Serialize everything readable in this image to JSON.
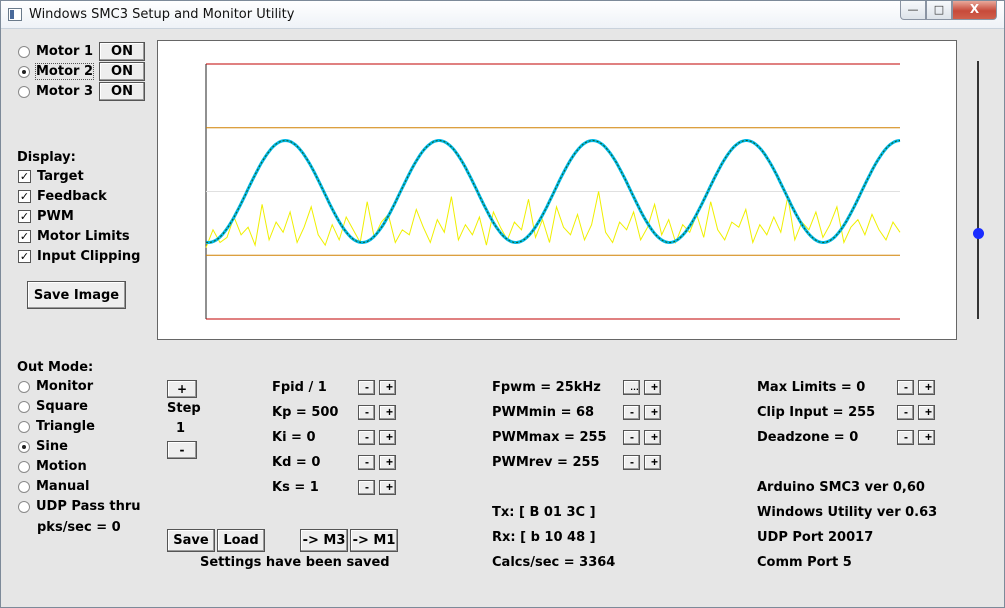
{
  "window": {
    "title": "Windows SMC3 Setup and Monitor Utility",
    "controls": {
      "minimize": "—",
      "maximize": "□",
      "close": "X"
    }
  },
  "motors": [
    {
      "label": "Motor 1",
      "selected": false,
      "button": "ON"
    },
    {
      "label": "Motor 2",
      "selected": true,
      "button": "ON"
    },
    {
      "label": "Motor 3",
      "selected": false,
      "button": "ON"
    }
  ],
  "display": {
    "heading": "Display:",
    "options": [
      {
        "label": "Target",
        "checked": true
      },
      {
        "label": "Feedback",
        "checked": true
      },
      {
        "label": "PWM",
        "checked": true
      },
      {
        "label": "Motor Limits",
        "checked": true
      },
      {
        "label": "Input Clipping",
        "checked": true
      }
    ],
    "check_glyph": "✓",
    "save_image": "Save Image"
  },
  "out_mode": {
    "heading": "Out Mode:",
    "options": [
      {
        "label": "Monitor",
        "selected": false
      },
      {
        "label": "Square",
        "selected": false
      },
      {
        "label": "Triangle",
        "selected": false
      },
      {
        "label": "Sine",
        "selected": true
      },
      {
        "label": "Motion",
        "selected": false
      },
      {
        "label": "Manual",
        "selected": false
      },
      {
        "label": "UDP Pass thru",
        "selected": false
      }
    ],
    "pks_sec": "pks/sec = 0"
  },
  "step": {
    "plus": "+",
    "label": "Step",
    "value": "1",
    "minus": "-"
  },
  "pid_params": [
    {
      "label": "Fpid / 1"
    },
    {
      "label": "Kp = 500"
    },
    {
      "label": "Ki = 0"
    },
    {
      "label": "Kd = 0"
    },
    {
      "label": "Ks = 1"
    }
  ],
  "pwm_params": [
    {
      "label": "Fpwm = 25kHz",
      "minus_icon": "…"
    },
    {
      "label": "PWMmin = 68"
    },
    {
      "label": "PWMmax = 255"
    },
    {
      "label": "PWMrev = 255"
    }
  ],
  "limit_params": [
    {
      "label": "Max Limits = 0"
    },
    {
      "label": "Clip Input = 255"
    },
    {
      "label": "Deadzone = 0"
    }
  ],
  "spin": {
    "minus": "-",
    "plus": "+"
  },
  "comms": {
    "tx": "Tx: [ B 01 3C ]",
    "rx": "Rx: [ b 10 48 ]",
    "calcs": "Calcs/sec = 3364"
  },
  "info": {
    "arduino": "Arduino SMC3 ver 0,60",
    "utility": "Windows Utility ver 0.63",
    "udp": "UDP Port 20017",
    "comm": "Comm Port 5"
  },
  "settings": {
    "save": "Save",
    "load": "Load",
    "to_m3": "-> M3",
    "to_m1": "-> M1",
    "status": "Settings have been saved"
  },
  "chart_data": {
    "type": "line",
    "xlim": [
      0,
      700
    ],
    "ylim": [
      0,
      100
    ],
    "grid": false,
    "limit_lines": [
      {
        "name": "Motor Limits",
        "color": "#c00000",
        "values": [
          0,
          100
        ]
      },
      {
        "name": "Input Clipping",
        "color": "#d08000",
        "values": [
          25,
          75
        ]
      }
    ],
    "center_line": {
      "color": "#e0e0e0",
      "value": 50
    },
    "series": [
      {
        "color": "#00b8e6",
        "kind": "sine",
        "center": 50,
        "amplitude": 20,
        "period": 155,
        "phase_x": 80,
        "width": 3
      },
      {
        "color": "#1a5a1a",
        "kind": "sine",
        "center": 50,
        "amplitude": 20,
        "period": 155,
        "phase_x": 80,
        "width": 1,
        "dash": "2,2"
      },
      {
        "color": "#f0f000",
        "kind": "noise",
        "values": [
          28,
          35,
          30,
          32,
          40,
          33,
          36,
          29,
          45,
          31,
          38,
          34,
          42,
          30,
          36,
          44,
          33,
          29,
          37,
          31,
          40,
          35,
          30,
          46,
          32,
          38,
          41,
          30,
          35,
          33,
          43,
          36,
          30,
          39,
          34,
          48,
          31,
          37,
          33,
          40,
          29,
          42,
          36,
          31,
          38,
          35,
          47,
          32,
          39,
          30,
          44,
          36,
          33,
          41,
          31,
          37,
          50,
          34,
          30,
          38,
          35,
          42,
          31,
          36,
          45,
          33,
          39,
          30,
          37,
          34,
          41,
          32,
          46,
          35,
          31,
          38,
          36,
          43,
          30,
          37,
          33,
          40,
          34,
          48,
          31,
          38,
          35,
          42,
          32,
          37,
          44,
          30,
          36,
          39,
          33,
          41,
          35,
          31,
          38,
          34
        ]
      }
    ]
  }
}
